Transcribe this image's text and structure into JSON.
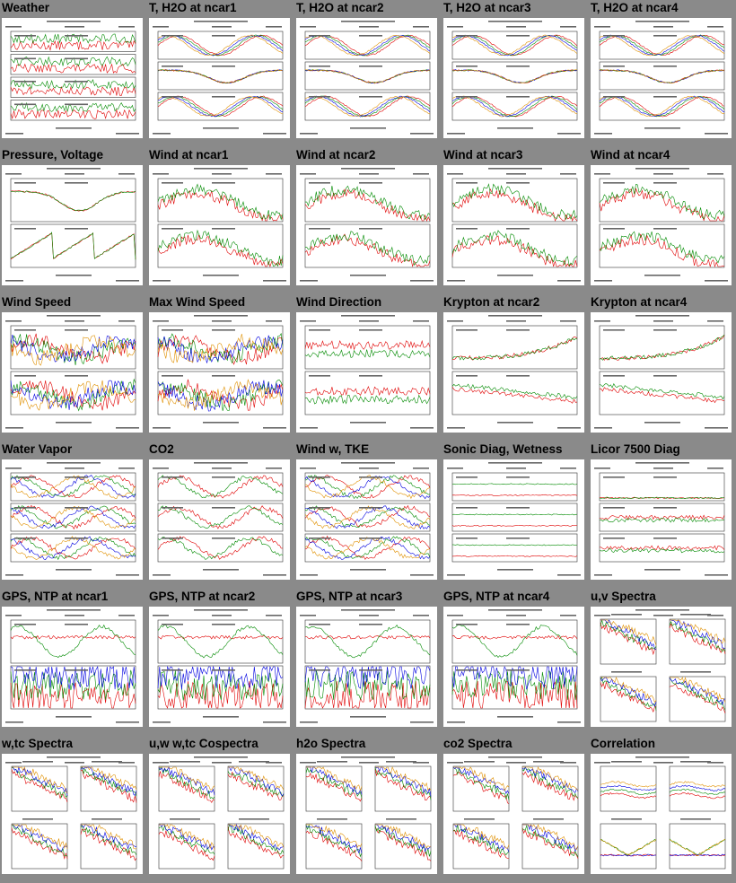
{
  "panels": [
    {
      "title": "Weather",
      "kind": "weather"
    },
    {
      "title": "T, H2O at ncar1",
      "kind": "th"
    },
    {
      "title": "T, H2O at ncar2",
      "kind": "th"
    },
    {
      "title": "T, H2O at ncar3",
      "kind": "th"
    },
    {
      "title": "T, H2O at ncar4",
      "kind": "th"
    },
    {
      "title": "Pressure, Voltage",
      "kind": "pv"
    },
    {
      "title": "Wind at ncar1",
      "kind": "wind"
    },
    {
      "title": "Wind at ncar2",
      "kind": "wind"
    },
    {
      "title": "Wind at ncar3",
      "kind": "wind"
    },
    {
      "title": "Wind at ncar4",
      "kind": "wind"
    },
    {
      "title": "Wind Speed",
      "kind": "ws"
    },
    {
      "title": "Max Wind Speed",
      "kind": "ws"
    },
    {
      "title": "Wind Direction",
      "kind": "wd"
    },
    {
      "title": "Krypton at ncar2",
      "kind": "kr"
    },
    {
      "title": "Krypton at ncar4",
      "kind": "kr"
    },
    {
      "title": "Water Vapor",
      "kind": "wv"
    },
    {
      "title": "CO2",
      "kind": "co2"
    },
    {
      "title": "Wind w, TKE",
      "kind": "wtke"
    },
    {
      "title": "Sonic Diag, Wetness",
      "kind": "sonic"
    },
    {
      "title": "Licor 7500 Diag",
      "kind": "licor"
    },
    {
      "title": "GPS, NTP at ncar1",
      "kind": "gps"
    },
    {
      "title": "GPS, NTP at ncar2",
      "kind": "gps"
    },
    {
      "title": "GPS, NTP at ncar3",
      "kind": "gps"
    },
    {
      "title": "GPS, NTP at ncar4",
      "kind": "gps"
    },
    {
      "title": "u,v Spectra",
      "kind": "spec"
    },
    {
      "title": "w,tc Spectra",
      "kind": "spec"
    },
    {
      "title": "u,w w,tc Cospectra",
      "kind": "spec"
    },
    {
      "title": "h2o Spectra",
      "kind": "spec"
    },
    {
      "title": "co2 Spectra",
      "kind": "spec"
    },
    {
      "title": "Correlation",
      "kind": "corr"
    }
  ],
  "colors": {
    "page_background": "#8a8a8a",
    "thumb_background": "#ffffff",
    "series": [
      "#e00000",
      "#008a00",
      "#0000e0",
      "#e09000",
      "#000000"
    ]
  }
}
